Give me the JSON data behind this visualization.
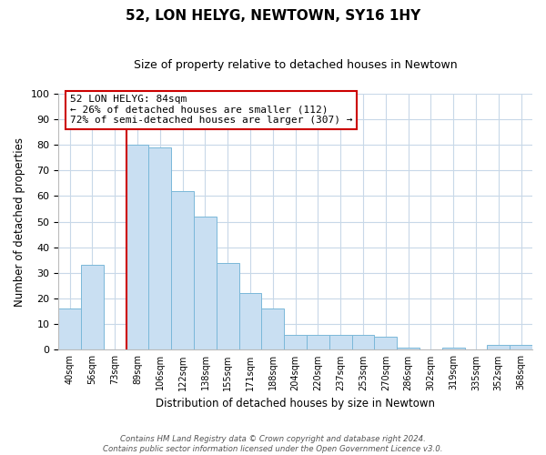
{
  "title": "52, LON HELYG, NEWTOWN, SY16 1HY",
  "subtitle": "Size of property relative to detached houses in Newtown",
  "xlabel": "Distribution of detached houses by size in Newtown",
  "ylabel": "Number of detached properties",
  "bin_labels": [
    "40sqm",
    "56sqm",
    "73sqm",
    "89sqm",
    "106sqm",
    "122sqm",
    "138sqm",
    "155sqm",
    "171sqm",
    "188sqm",
    "204sqm",
    "220sqm",
    "237sqm",
    "253sqm",
    "270sqm",
    "286sqm",
    "302sqm",
    "319sqm",
    "335sqm",
    "352sqm",
    "368sqm"
  ],
  "bar_values": [
    16,
    33,
    0,
    80,
    79,
    62,
    52,
    34,
    22,
    16,
    6,
    6,
    6,
    6,
    5,
    1,
    0,
    1,
    0,
    2,
    2
  ],
  "bar_color": "#c9dff2",
  "bar_edge_color": "#7ab8d9",
  "vline_position": 2.5,
  "vline_color": "#cc0000",
  "ylim": [
    0,
    100
  ],
  "yticks": [
    0,
    10,
    20,
    30,
    40,
    50,
    60,
    70,
    80,
    90,
    100
  ],
  "annotation_title": "52 LON HELYG: 84sqm",
  "annotation_line1": "← 26% of detached houses are smaller (112)",
  "annotation_line2": "72% of semi-detached houses are larger (307) →",
  "annotation_box_color": "#ffffff",
  "annotation_box_edge_color": "#cc0000",
  "footer_line1": "Contains HM Land Registry data © Crown copyright and database right 2024.",
  "footer_line2": "Contains public sector information licensed under the Open Government Licence v3.0.",
  "background_color": "#ffffff",
  "grid_color": "#c8d8e8",
  "figsize": [
    6.0,
    5.0
  ],
  "dpi": 100
}
